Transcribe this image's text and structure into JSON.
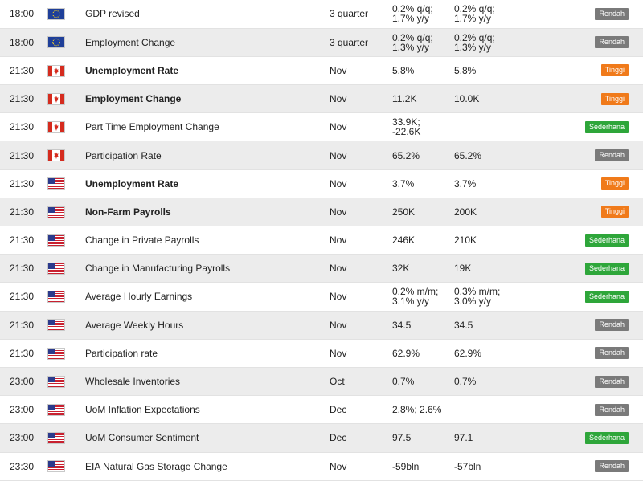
{
  "rows": [
    {
      "time": "18:00",
      "country": "EU",
      "event": "GDP revised",
      "bold": false,
      "period": "3 quarter",
      "v1": "0.2% q/q;\n1.7% y/y",
      "v2": "0.2% q/q;\n1.7% y/y",
      "impact": "Rendah",
      "impact_class": "rendah"
    },
    {
      "time": "18:00",
      "country": "EU",
      "event": "Employment Change",
      "bold": false,
      "period": "3 quarter",
      "v1": "0.2% q/q;\n1.3% y/y",
      "v2": "0.2% q/q;\n1.3% y/y",
      "impact": "Rendah",
      "impact_class": "rendah"
    },
    {
      "time": "21:30",
      "country": "CA",
      "event": "Unemployment Rate",
      "bold": true,
      "period": "Nov",
      "v1": "5.8%",
      "v2": "5.8%",
      "impact": "Tinggi",
      "impact_class": "tinggi"
    },
    {
      "time": "21:30",
      "country": "CA",
      "event": "Employment Change",
      "bold": true,
      "period": "Nov",
      "v1": "11.2K",
      "v2": "10.0K",
      "impact": "Tinggi",
      "impact_class": "tinggi"
    },
    {
      "time": "21:30",
      "country": "CA",
      "event": "Part Time Employment Change",
      "bold": false,
      "period": "Nov",
      "v1": "33.9K;\n-22.6K",
      "v2": "",
      "impact": "Sederhana",
      "impact_class": "sederhana"
    },
    {
      "time": "21:30",
      "country": "CA",
      "event": "Participation Rate",
      "bold": false,
      "period": "Nov",
      "v1": "65.2%",
      "v2": "65.2%",
      "impact": "Rendah",
      "impact_class": "rendah"
    },
    {
      "time": "21:30",
      "country": "US",
      "event": "Unemployment Rate",
      "bold": true,
      "period": "Nov",
      "v1": "3.7%",
      "v2": "3.7%",
      "impact": "Tinggi",
      "impact_class": "tinggi"
    },
    {
      "time": "21:30",
      "country": "US",
      "event": "Non-Farm Payrolls",
      "bold": true,
      "period": "Nov",
      "v1": "250K",
      "v2": "200K",
      "impact": "Tinggi",
      "impact_class": "tinggi"
    },
    {
      "time": "21:30",
      "country": "US",
      "event": "Change in Private Payrolls",
      "bold": false,
      "period": "Nov",
      "v1": "246K",
      "v2": "210K",
      "impact": "Sederhana",
      "impact_class": "sederhana"
    },
    {
      "time": "21:30",
      "country": "US",
      "event": "Change in Manufacturing Payrolls",
      "bold": false,
      "period": "Nov",
      "v1": "32K",
      "v2": "19K",
      "impact": "Sederhana",
      "impact_class": "sederhana"
    },
    {
      "time": "21:30",
      "country": "US",
      "event": "Average Hourly Earnings",
      "bold": false,
      "period": "Nov",
      "v1": "0.2% m/m;\n3.1% y/y",
      "v2": "0.3% m/m;\n3.0% y/y",
      "impact": "Sederhana",
      "impact_class": "sederhana"
    },
    {
      "time": "21:30",
      "country": "US",
      "event": "Average Weekly Hours",
      "bold": false,
      "period": "Nov",
      "v1": "34.5",
      "v2": "34.5",
      "impact": "Rendah",
      "impact_class": "rendah"
    },
    {
      "time": "21:30",
      "country": "US",
      "event": "Participation rate",
      "bold": false,
      "period": "Nov",
      "v1": "62.9%",
      "v2": "62.9%",
      "impact": "Rendah",
      "impact_class": "rendah"
    },
    {
      "time": "23:00",
      "country": "US",
      "event": "Wholesale Inventories",
      "bold": false,
      "period": "Oct",
      "v1": "0.7%",
      "v2": "0.7%",
      "impact": "Rendah",
      "impact_class": "rendah"
    },
    {
      "time": "23:00",
      "country": "US",
      "event": "UoM Inflation Expectations",
      "bold": false,
      "period": "Dec",
      "v1": "2.8%; 2.6%",
      "v2": "",
      "impact": "Rendah",
      "impact_class": "rendah"
    },
    {
      "time": "23:00",
      "country": "US",
      "event": "UoM Consumer Sentiment",
      "bold": false,
      "period": "Dec",
      "v1": "97.5",
      "v2": "97.1",
      "impact": "Sederhana",
      "impact_class": "sederhana"
    },
    {
      "time": "23:30",
      "country": "US",
      "event": "EIA Natural Gas Storage Change",
      "bold": false,
      "period": "Nov",
      "v1": "-59bln",
      "v2": "-57bln",
      "impact": "Rendah",
      "impact_class": "rendah"
    }
  ],
  "colors": {
    "rendah": "#7a7a7a",
    "tinggi": "#f07a1a",
    "sederhana": "#2ea63a",
    "row_alt": "#ececec"
  }
}
